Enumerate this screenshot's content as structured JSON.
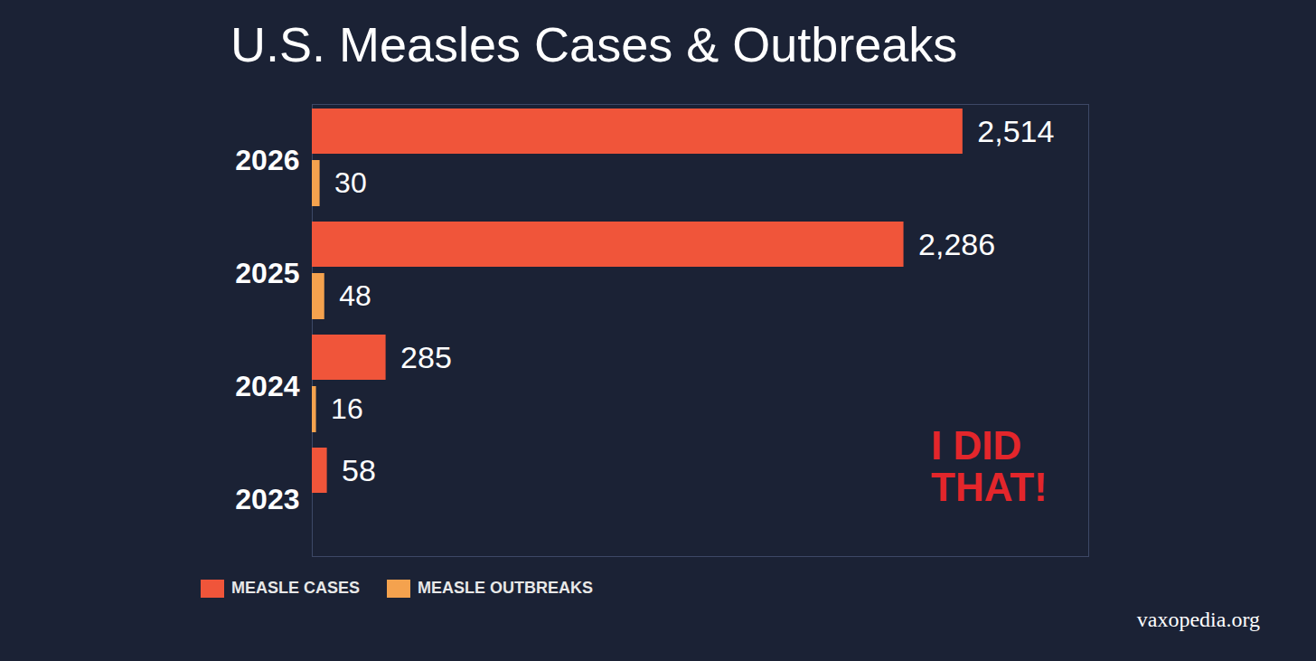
{
  "chart_data": {
    "type": "bar",
    "title": "U.S. Measles Cases & Outbreaks",
    "orientation": "horizontal",
    "categories": [
      "2026",
      "2025",
      "2024",
      "2023"
    ],
    "series": [
      {
        "name": "MEASLE CASES",
        "color": "#f0553a",
        "values": [
          2514,
          2286,
          285,
          58
        ],
        "value_labels": [
          "2,514",
          "2,286",
          "285",
          "58"
        ]
      },
      {
        "name": "MEASLE OUTBREAKS",
        "color": "#f4a24e",
        "values": [
          30,
          48,
          16,
          null
        ]
      }
    ],
    "xlim": [
      0,
      3000
    ],
    "xticks": [],
    "grid": false,
    "data_labels": true,
    "tick_labels": "y",
    "legend": "bottom-left",
    "annotations": [
      "I DID THAT!",
      "vaxopedia.org"
    ]
  }
}
